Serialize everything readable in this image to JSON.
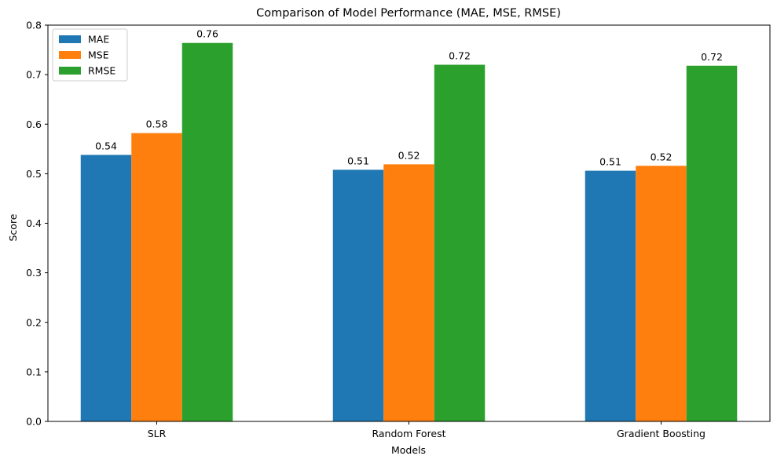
{
  "chart_data": {
    "type": "bar",
    "title": "Comparison of Model Performance (MAE, MSE, RMSE)",
    "xlabel": "Models",
    "ylabel": "Score",
    "categories": [
      "SLR",
      "Random Forest",
      "Gradient Boosting"
    ],
    "series": [
      {
        "name": "MAE",
        "color": "#1f77b4",
        "values": [
          0.538,
          0.508,
          0.506
        ],
        "labels": [
          "0.54",
          "0.51",
          "0.51"
        ]
      },
      {
        "name": "MSE",
        "color": "#ff7f0e",
        "values": [
          0.582,
          0.519,
          0.516
        ],
        "labels": [
          "0.58",
          "0.52",
          "0.52"
        ]
      },
      {
        "name": "RMSE",
        "color": "#2ca02c",
        "values": [
          0.764,
          0.72,
          0.718
        ],
        "labels": [
          "0.76",
          "0.72",
          "0.72"
        ]
      }
    ],
    "ylim": [
      0,
      0.8
    ],
    "yticks": [
      "0.0",
      "0.1",
      "0.2",
      "0.3",
      "0.4",
      "0.5",
      "0.6",
      "0.7",
      "0.8"
    ],
    "grid": false,
    "legend_position": "top-left"
  }
}
